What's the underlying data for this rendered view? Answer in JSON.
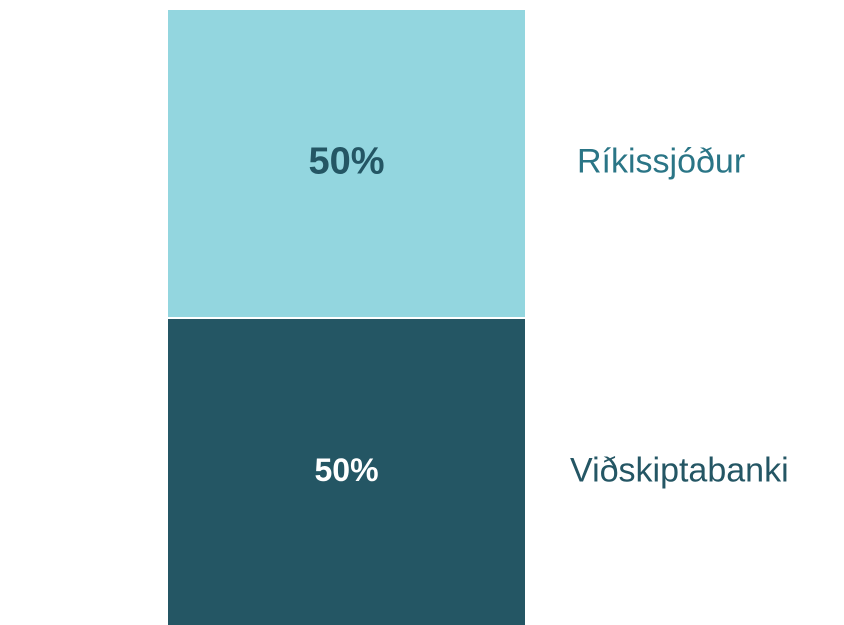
{
  "chart_data": {
    "type": "bar",
    "stacked": true,
    "categories": [
      null
    ],
    "ylim": [
      0,
      100
    ],
    "series": [
      {
        "name": "Viðskiptabanki",
        "color": "#245664",
        "values": [
          50
        ],
        "value_labels": [
          "50%"
        ]
      },
      {
        "name": "Ríkissjóður",
        "color": "#93d6df",
        "values": [
          50
        ],
        "value_labels": [
          "50%"
        ]
      }
    ]
  }
}
